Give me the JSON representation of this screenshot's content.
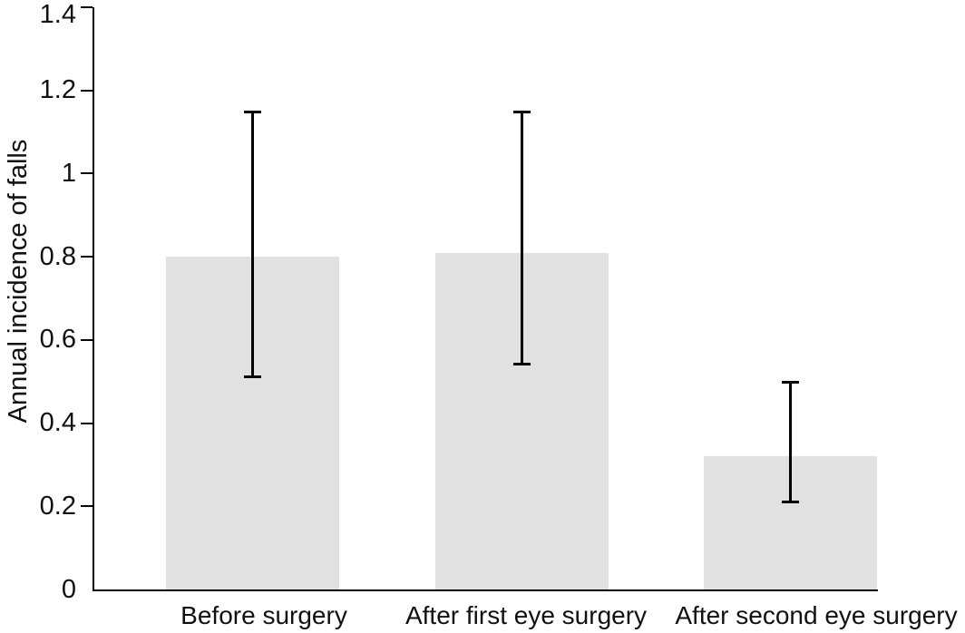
{
  "chart_data": {
    "type": "bar",
    "title": "",
    "xlabel": "",
    "ylabel": "Annual incidence of falls",
    "categories": [
      "Before surgery",
      "After first eye surgery",
      "After second eye surgery"
    ],
    "values": [
      0.8,
      0.81,
      0.32
    ],
    "error_bars": {
      "low": [
        0.51,
        0.54,
        0.21
      ],
      "high": [
        1.15,
        1.15,
        0.5
      ]
    },
    "ylim": [
      0,
      1.4
    ],
    "yticks": [
      0,
      0.2,
      0.4,
      0.6,
      0.8,
      1,
      1.2,
      1.4
    ],
    "ytick_labels": [
      "0",
      "0.2",
      "0.4",
      "0.6",
      "0.8",
      "1",
      "1.2",
      "1.4"
    ],
    "grid": false,
    "legend": null,
    "bar_color": "#e1e1e1",
    "axis_color": "#000000",
    "text_color": "#111111",
    "background_color": "#ffffff"
  }
}
